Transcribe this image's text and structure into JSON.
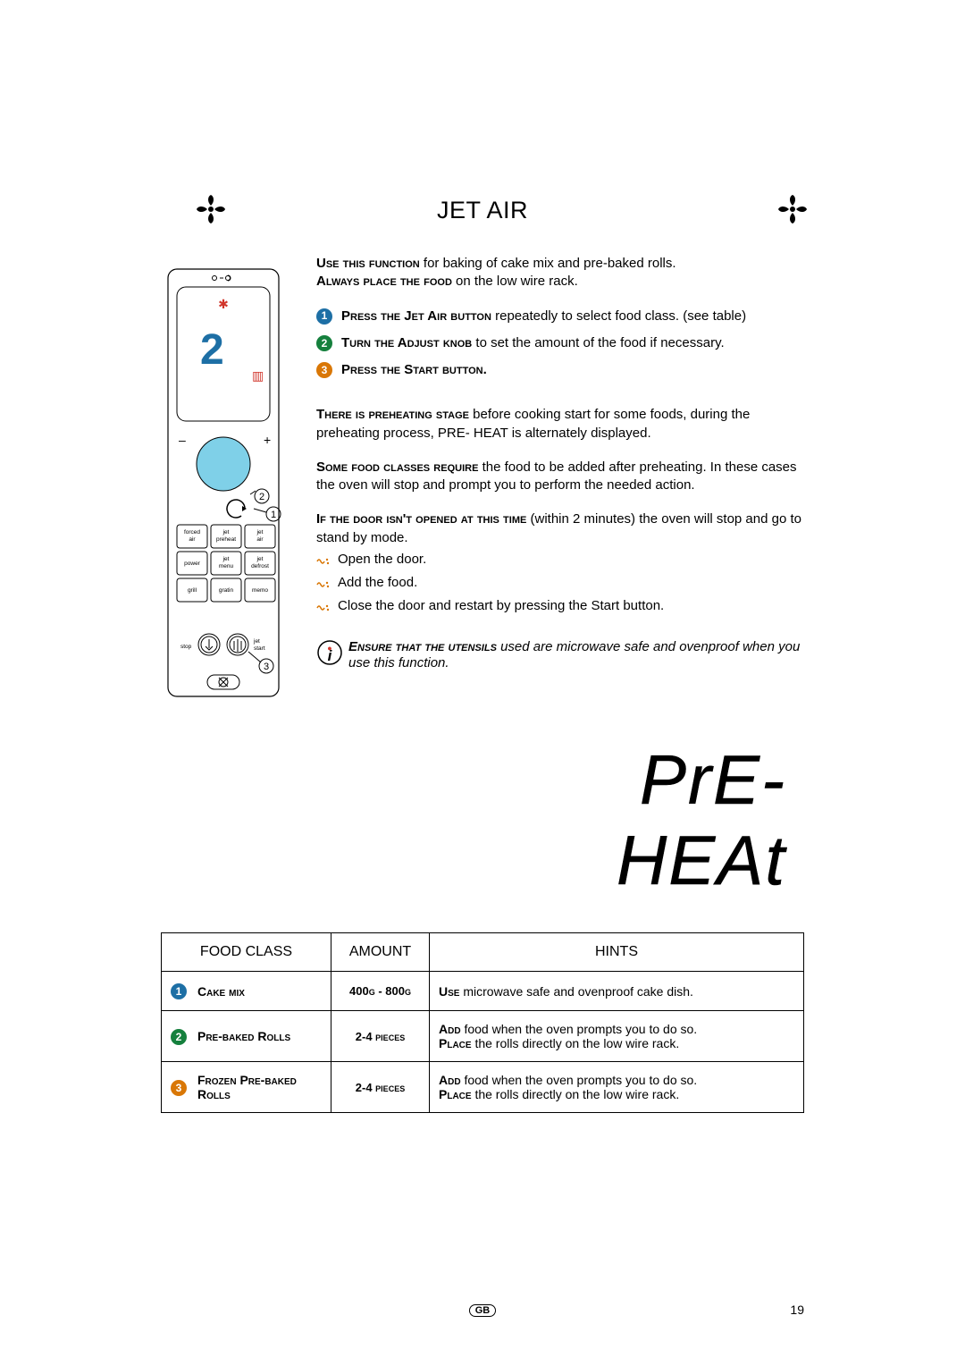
{
  "title": "JET AIR",
  "intro": {
    "line1_pre": "Use this function",
    "line1_rest": " for baking of cake mix and pre-baked rolls.",
    "line2_pre": "Always place the food",
    "line2_rest": " on the low wire rack."
  },
  "steps": [
    {
      "n": "1",
      "badge": "b1",
      "pre": "Press the Jet Air button",
      "rest": " repeatedly to select food class. (see table)"
    },
    {
      "n": "2",
      "badge": "b2",
      "pre": "Turn the Adjust knob",
      "rest": " to set the amount of the food if necessary."
    },
    {
      "n": "3",
      "badge": "b3",
      "pre": "Press the Start button.",
      "rest": ""
    }
  ],
  "preheat_para": {
    "pre": "There is preheating stage",
    "rest": " before cooking start for some foods, during the preheating process, PRE- HEAT is alternately displayed."
  },
  "require_para": {
    "pre": "Some food classes require",
    "rest": " the food to be added after preheating. In these cases the oven will stop and prompt you to perform the needed action."
  },
  "door_para": {
    "pre": "If the door isn't opened at this time",
    "rest": " (within 2 minutes) the oven will stop and go to stand by mode."
  },
  "bullets": [
    "Open the door.",
    "Add the food.",
    "Close the door and restart by pressing the Start button."
  ],
  "info": {
    "pre": "Ensure that the utensils",
    "rest": " used are microwave safe and ovenproof when you use this function."
  },
  "seg_display": {
    "l1": "PrE-",
    "l2": "HEAt"
  },
  "table": {
    "headers": [
      "FOOD CLASS",
      "AMOUNT",
      "HINTS"
    ],
    "rows": [
      {
        "badge": "b1",
        "n": "1",
        "name": "Cake mix",
        "amount": "400g - 800g",
        "hint_pre": "Use",
        "hint_rest": " microwave safe and ovenproof cake dish."
      },
      {
        "badge": "b2",
        "n": "2",
        "name": "Pre-baked Rolls",
        "amount": "2-4 pieces",
        "hint_pre": "Add",
        "hint_rest": " food when the oven prompts you to do so.",
        "hint2_pre": "Place",
        "hint2_rest": " the rolls directly on the low wire rack."
      },
      {
        "badge": "b3",
        "n": "3",
        "name": "Frozen Pre-baked Rolls",
        "amount": "2-4 pieces",
        "hint_pre": "Add",
        "hint_rest": " food when the oven prompts you to do so.",
        "hint2_pre": "Place",
        "hint2_rest": " the rolls directly on the low wire rack."
      }
    ]
  },
  "footer": {
    "region": "GB",
    "page": "19"
  },
  "panel": {
    "buttons": [
      [
        "forced\nair",
        "jet\npreheat",
        "jet\nair"
      ],
      [
        "power",
        "jet\nmenu",
        "jet\ndefrost"
      ],
      [
        "grill",
        "gratin",
        "memo"
      ]
    ],
    "stop": "stop",
    "jetstart": "jet\nstart",
    "callouts": [
      "1",
      "2",
      "3"
    ],
    "display_digit": "2",
    "colors": {
      "knob": "#7fd0e8",
      "display_bg": "#ffffff",
      "snow": "#d1352b",
      "heat": "#d1352b",
      "digit": "#1d6fa5"
    }
  }
}
